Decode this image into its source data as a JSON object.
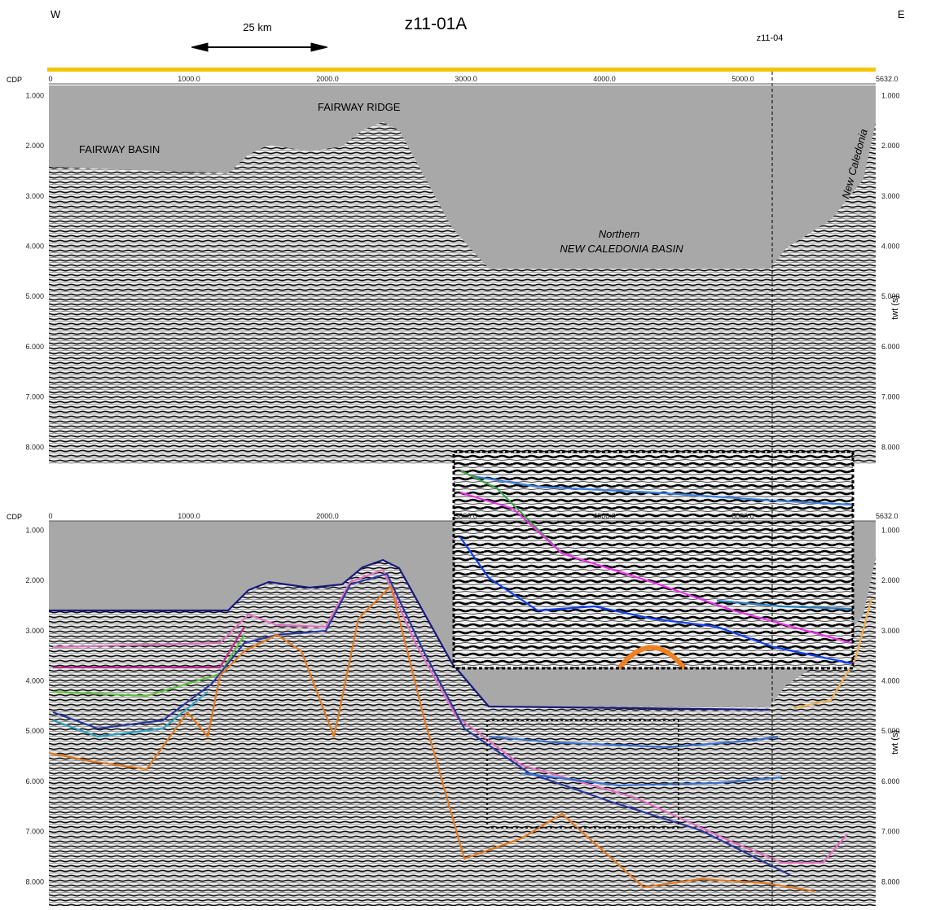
{
  "header": {
    "west": "W",
    "east": "E",
    "title": "z11-01A",
    "scale_bar": "25 km",
    "crossing_line": "z11-04"
  },
  "top_panel": {
    "cdp_label": "CDP",
    "cdp_ticks": [
      "0",
      "1000.0",
      "2000.0",
      "3000.0",
      "4000.0",
      "5000.0",
      "5632.0"
    ],
    "twt_ticks": [
      "1.000",
      "2.000",
      "3.000",
      "4.000",
      "5.000",
      "6.000",
      "7.000",
      "8.000"
    ],
    "twt_axis_label": "twt (s)",
    "labels": {
      "fairway_basin": "FAIRWAY BASIN",
      "fairway_ridge": "FAIRWAY RIDGE",
      "northern": "Northern",
      "basin": "NEW CALEDONIA BASIN",
      "new_caledonia": "New Caledonia"
    }
  },
  "bottom_panel": {
    "cdp_label": "CDP",
    "cdp_ticks": [
      "0",
      "1000.0",
      "2000.0",
      "3000.0",
      "4000.0",
      "5000.0",
      "5632.0"
    ],
    "twt_ticks": [
      "1.000",
      "2.000",
      "3.000",
      "4.000",
      "5.000",
      "6.000",
      "7.000",
      "8.000"
    ],
    "twt_axis_label": "twt (s)"
  }
}
